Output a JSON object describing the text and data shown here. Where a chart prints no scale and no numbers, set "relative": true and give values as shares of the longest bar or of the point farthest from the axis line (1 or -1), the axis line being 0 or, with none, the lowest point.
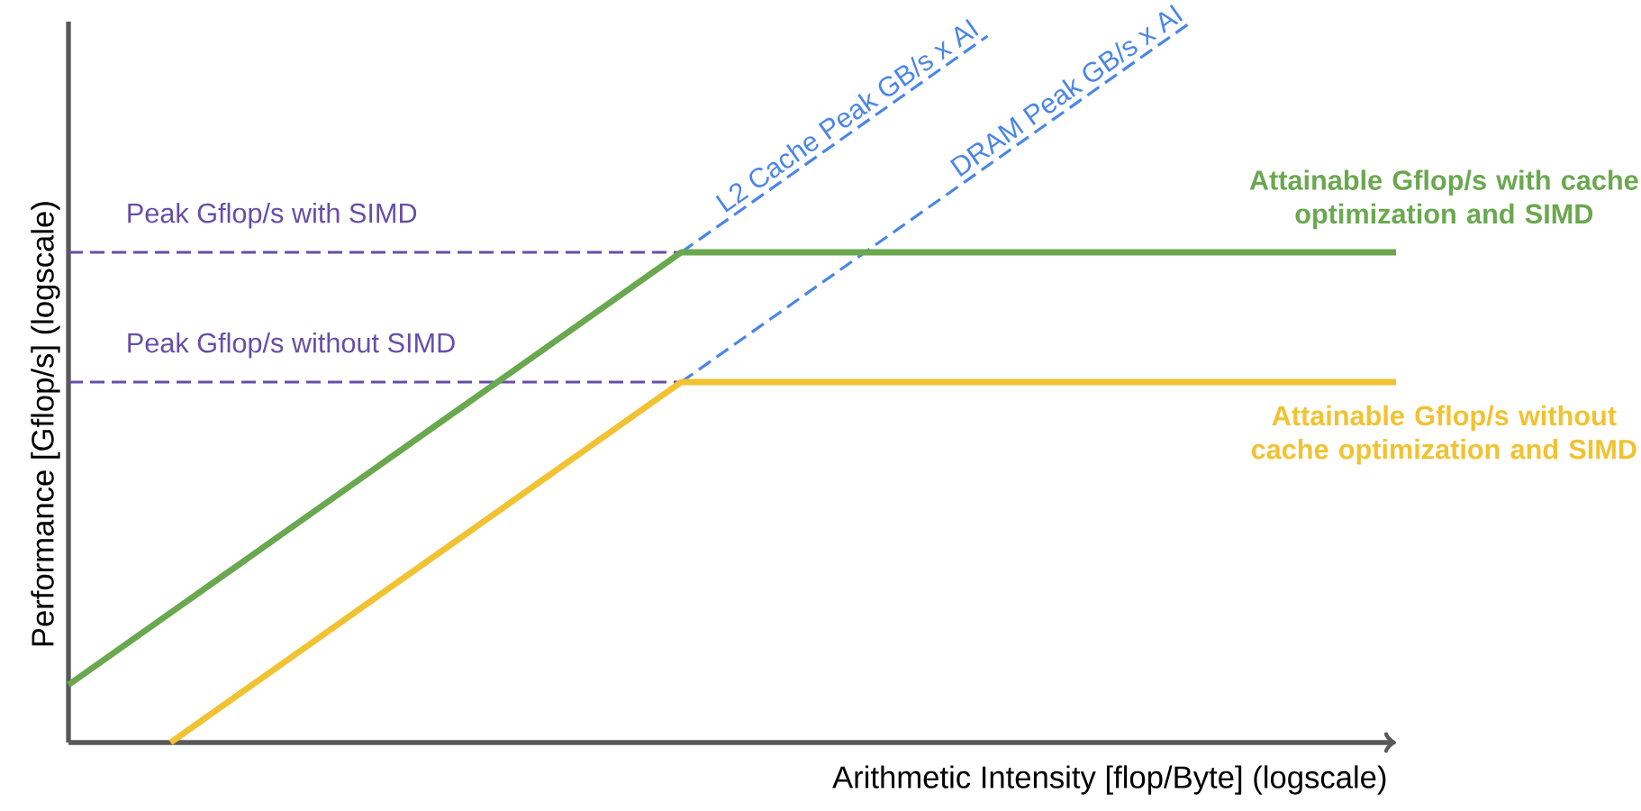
{
  "chart_data": {
    "type": "line",
    "relative": true,
    "marker": "none",
    "xlabel": "Arithmetic Intensity [flop/Byte] (logscale)",
    "ylabel": "Performance [Gflop/s] (logscale)",
    "categories": [
      null,
      null,
      null,
      null,
      null,
      null,
      null,
      null,
      null,
      null,
      null,
      null,
      null,
      null
    ],
    "series": [
      {
        "name": "Peak Gflop/s with SIMD",
        "color": "#674ea7",
        "line_style": "dashed",
        "values": [
          0.68,
          0.68,
          0.68,
          0.68,
          0.68,
          0.68,
          0.68,
          null,
          null,
          null,
          null,
          null,
          null,
          null
        ]
      },
      {
        "name": "Peak Gflop/s without SIMD",
        "color": "#674ea7",
        "line_style": "dashed",
        "values": [
          0.5,
          0.5,
          0.5,
          0.5,
          0.5,
          0.5,
          0.5,
          null,
          null,
          null,
          null,
          null,
          null,
          null
        ]
      },
      {
        "name": "L2 Cache Peak GB/s x AI",
        "color": "#4a86e8",
        "line_style": "dashed",
        "values": [
          null,
          null,
          null,
          null,
          null,
          null,
          0.68,
          0.78,
          0.88,
          0.98,
          null,
          null,
          null,
          null
        ]
      },
      {
        "name": "DRAM Peak GB/s x AI",
        "color": "#4a86e8",
        "line_style": "dashed",
        "values": [
          null,
          null,
          null,
          null,
          null,
          null,
          0.5,
          0.6,
          0.7,
          0.8,
          0.9,
          1.0,
          null,
          null
        ]
      },
      {
        "name": "Attainable Gflop/s with cache optimization and SIMD",
        "color": "#6aa84f",
        "line_style": "solid",
        "values": [
          0.08,
          0.18,
          0.28,
          0.38,
          0.48,
          0.58,
          0.68,
          0.68,
          0.68,
          0.68,
          0.68,
          0.68,
          0.68,
          0.68
        ]
      },
      {
        "name": "Attainable Gflop/s without cache optimization and SIMD",
        "color": "#f1c232",
        "line_style": "solid",
        "values": [
          null,
          0,
          0.1,
          0.2,
          0.3,
          0.4,
          0.5,
          0.5,
          0.5,
          0.5,
          0.5,
          0.5,
          0.5,
          0.5
        ]
      }
    ]
  }
}
